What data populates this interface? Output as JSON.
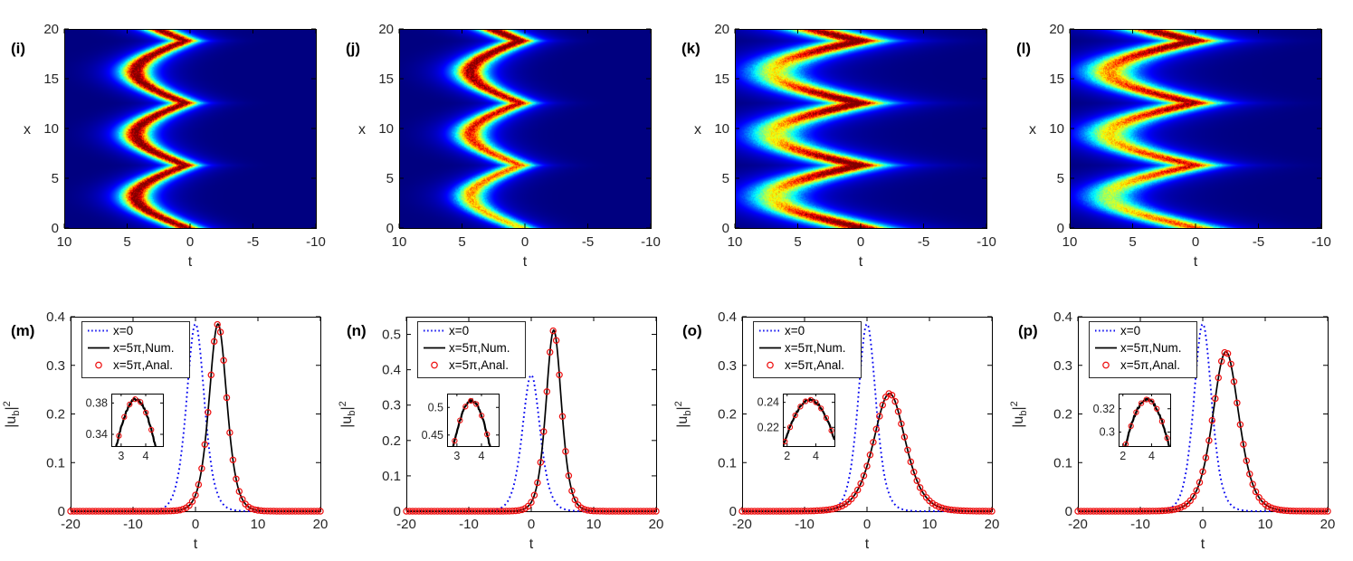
{
  "colors": {
    "axis": "#000000",
    "tick_label": "#262626",
    "curve_initial": "#0a0af0",
    "curve_numerical": "#000000",
    "curve_analytical": "#ee1212",
    "heatmap_background": "#000080",
    "page_background": "#ffffff"
  },
  "chart_data": {
    "shared": {
      "line_ylabel_parts": {
        "prefix": "|u",
        "subscript": "b",
        "mid": "|",
        "superscript": "2"
      },
      "line_xlabel": "t",
      "heat_xlabel": "t",
      "heat_ylabel": "x"
    },
    "heatmap_panels": [
      {
        "type": "heatmap",
        "label": "(i)",
        "xlabel": "t",
        "ylabel": "x",
        "xlim": [
          10,
          -10
        ],
        "ylim": [
          0,
          20
        ],
        "xticks": [
          "10",
          "5",
          "0",
          "-5",
          "-10"
        ],
        "yticks": [
          "0",
          "5",
          "10",
          "15",
          "20"
        ],
        "model": {
          "t_offset": 0.35,
          "amplitude": 4.0,
          "x_half_period": 3.14159,
          "band_width": 1.0,
          "base_intensity": 0.92,
          "growth_with_x": 0.0,
          "cusp_brightening": 0.0,
          "halo": 0.13,
          "noise": 0.26,
          "seed": 11
        }
      },
      {
        "type": "heatmap",
        "label": "(j)",
        "xlabel": "t",
        "ylabel": "x",
        "xlim": [
          10,
          -10
        ],
        "ylim": [
          0,
          20
        ],
        "xticks": [
          "10",
          "5",
          "0",
          "-5",
          "-10"
        ],
        "yticks": [
          "0",
          "5",
          "10",
          "15",
          "20"
        ],
        "model": {
          "t_offset": 0.35,
          "amplitude": 4.0,
          "x_half_period": 3.14159,
          "band_width": 1.05,
          "base_intensity": 0.58,
          "growth_with_x": 0.4,
          "cusp_brightening": 0.0,
          "halo": 0.13,
          "noise": 0.26,
          "seed": 23
        }
      },
      {
        "type": "heatmap",
        "label": "(k)",
        "xlabel": "t",
        "ylabel": "x",
        "xlim": [
          10,
          -10
        ],
        "ylim": [
          0,
          20
        ],
        "xticks": [
          "10",
          "5",
          "0",
          "-5",
          "-10"
        ],
        "yticks": [
          "0",
          "5",
          "10",
          "15",
          "20"
        ],
        "model": {
          "t_offset": 0.05,
          "amplitude": 6.8,
          "x_half_period": 3.14159,
          "band_width": 1.9,
          "base_intensity": 0.55,
          "growth_with_x": 0.0,
          "cusp_brightening": 0.42,
          "halo": 0.13,
          "noise": 0.26,
          "seed": 37
        }
      },
      {
        "type": "heatmap",
        "label": "(l)",
        "xlabel": "t",
        "ylabel": "x",
        "xlim": [
          10,
          -10
        ],
        "ylim": [
          0,
          20
        ],
        "xticks": [
          "10",
          "5",
          "0",
          "-5",
          "-10"
        ],
        "yticks": [
          "0",
          "5",
          "10",
          "15",
          "20"
        ],
        "model": {
          "t_offset": 0.05,
          "amplitude": 6.8,
          "x_half_period": 3.14159,
          "band_width": 1.8,
          "base_intensity": 0.45,
          "growth_with_x": 0.25,
          "cusp_brightening": 0.27,
          "halo": 0.13,
          "noise": 0.26,
          "seed": 51
        }
      }
    ],
    "line_panels": [
      {
        "type": "line",
        "label": "(m)",
        "xlabel": "t",
        "xlim": [
          -20,
          20
        ],
        "ylim": [
          0,
          0.4
        ],
        "xticks": [
          "-20",
          "-10",
          "0",
          "10",
          "20"
        ],
        "yticks": [
          "0",
          "0.1",
          "0.2",
          "0.3",
          "0.4"
        ],
        "series": [
          {
            "name": "x=0",
            "style": "dotted-blue",
            "peak": 0.385,
            "center": 0,
            "width": 1.9
          },
          {
            "name": "x=5π,Num.",
            "style": "solid-black",
            "peak": 0.385,
            "center": 3.6,
            "width": 1.9
          },
          {
            "name": "x=5π,Anal.",
            "style": "circles-red",
            "peak": 0.385,
            "center": 3.6,
            "width": 1.9,
            "marker_step": 0.5
          }
        ],
        "inset": {
          "xlim": [
            2.6,
            4.7
          ],
          "ylim": [
            0.325,
            0.392
          ],
          "xticks": [
            "3",
            "4"
          ],
          "yticks": [
            "0.34",
            "0.38"
          ],
          "width_param": 1.9,
          "marker_step": 0.22,
          "seed": 101
        }
      },
      {
        "type": "line",
        "label": "(n)",
        "xlabel": "t",
        "xlim": [
          -20,
          20
        ],
        "ylim": [
          0,
          0.55
        ],
        "xticks": [
          "-20",
          "-10",
          "0",
          "10",
          "20"
        ],
        "yticks": [
          "0",
          "0.1",
          "0.2",
          "0.3",
          "0.4",
          "0.5"
        ],
        "series": [
          {
            "name": "x=0",
            "style": "dotted-blue",
            "peak": 0.385,
            "center": 0,
            "width": 1.9
          },
          {
            "name": "x=5π,Num.",
            "style": "solid-black",
            "peak": 0.512,
            "center": 3.6,
            "width": 1.65
          },
          {
            "name": "x=5π,Anal.",
            "style": "circles-red",
            "peak": 0.512,
            "center": 3.6,
            "width": 1.65,
            "marker_step": 0.5
          }
        ],
        "inset": {
          "xlim": [
            2.6,
            4.7
          ],
          "ylim": [
            0.43,
            0.525
          ],
          "xticks": [
            "3",
            "4"
          ],
          "yticks": [
            "0.45",
            "0.5"
          ],
          "width_param": 1.75,
          "marker_step": 0.22,
          "seed": 113
        }
      },
      {
        "type": "line",
        "label": "(o)",
        "xlabel": "t",
        "xlim": [
          -20,
          20
        ],
        "ylim": [
          0,
          0.4
        ],
        "xticks": [
          "-20",
          "-10",
          "0",
          "10",
          "20"
        ],
        "yticks": [
          "0",
          "0.1",
          "0.2",
          "0.3",
          "0.4"
        ],
        "series": [
          {
            "name": "x=0",
            "style": "dotted-blue",
            "peak": 0.385,
            "center": 0,
            "width": 1.9
          },
          {
            "name": "x=5π,Num.",
            "style": "solid-black",
            "peak": 0.242,
            "center": 3.6,
            "width": 3.4
          },
          {
            "name": "x=5π,Anal.",
            "style": "circles-red",
            "peak": 0.242,
            "center": 3.6,
            "width": 3.4,
            "marker_step": 0.5
          }
        ],
        "inset": {
          "xlim": [
            1.7,
            5.3
          ],
          "ylim": [
            0.205,
            0.247
          ],
          "xticks": [
            "2",
            "4"
          ],
          "yticks": [
            "0.22",
            "0.24"
          ],
          "width_param": 4.5,
          "marker_step": 0.36,
          "seed": 127
        }
      },
      {
        "type": "line",
        "label": "(p)",
        "xlabel": "t",
        "xlim": [
          -20,
          20
        ],
        "ylim": [
          0,
          0.4
        ],
        "xticks": [
          "-20",
          "-10",
          "0",
          "10",
          "20"
        ],
        "yticks": [
          "0",
          "0.1",
          "0.2",
          "0.3",
          "0.4"
        ],
        "series": [
          {
            "name": "x=0",
            "style": "dotted-blue",
            "peak": 0.385,
            "center": 0,
            "width": 1.9
          },
          {
            "name": "x=5π,Num.",
            "style": "solid-black",
            "peak": 0.328,
            "center": 3.7,
            "width": 2.8
          },
          {
            "name": "x=5π,Anal.",
            "style": "circles-red",
            "peak": 0.328,
            "center": 3.7,
            "width": 2.8,
            "marker_step": 0.5
          }
        ],
        "inset": {
          "xlim": [
            1.7,
            5.3
          ],
          "ylim": [
            0.288,
            0.333
          ],
          "xticks": [
            "2",
            "4"
          ],
          "yticks": [
            "0.3",
            "0.32"
          ],
          "width_param": 4.2,
          "marker_step": 0.36,
          "seed": 139
        }
      }
    ]
  }
}
